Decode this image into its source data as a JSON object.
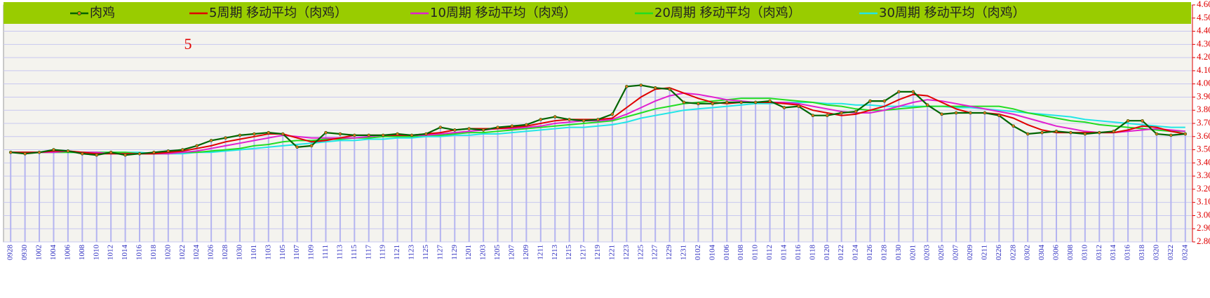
{
  "chart_data": {
    "type": "line",
    "annotation": "5",
    "categories": [
      "0928",
      "0930",
      "1002",
      "1004",
      "1006",
      "1008",
      "1010",
      "1012",
      "1014",
      "1016",
      "1018",
      "1020",
      "1022",
      "1024",
      "1026",
      "1028",
      "1030",
      "1101",
      "1103",
      "1105",
      "1107",
      "1109",
      "1111",
      "1113",
      "1115",
      "1117",
      "1119",
      "1121",
      "1123",
      "1125",
      "1127",
      "1129",
      "1201",
      "1203",
      "1205",
      "1207",
      "1209",
      "1211",
      "1213",
      "1215",
      "1217",
      "1219",
      "1221",
      "1223",
      "1225",
      "1227",
      "1229",
      "1231",
      "0102",
      "0104",
      "0106",
      "0108",
      "0110",
      "0112",
      "0114",
      "0116",
      "0118",
      "0120",
      "0122",
      "0124",
      "0126",
      "0128",
      "0130",
      "0201",
      "0203",
      "0205",
      "0207",
      "0209",
      "0211",
      "0226",
      "0228",
      "0302",
      "0304",
      "0306",
      "0308",
      "0310",
      "0312",
      "0314",
      "0316",
      "0318",
      "0320",
      "0322",
      "0324"
    ],
    "series": [
      {
        "name": "肉鸡",
        "color": "#006400",
        "values": [
          3.48,
          3.47,
          3.48,
          3.5,
          3.49,
          3.47,
          3.46,
          3.48,
          3.46,
          3.47,
          3.48,
          3.49,
          3.5,
          3.53,
          3.57,
          3.59,
          3.61,
          3.62,
          3.63,
          3.62,
          3.52,
          3.53,
          3.63,
          3.62,
          3.61,
          3.61,
          3.61,
          3.62,
          3.61,
          3.62,
          3.67,
          3.65,
          3.66,
          3.65,
          3.67,
          3.68,
          3.69,
          3.73,
          3.75,
          3.73,
          3.72,
          3.73,
          3.77,
          3.98,
          3.99,
          3.97,
          3.96,
          3.86,
          3.85,
          3.85,
          3.86,
          3.86,
          3.86,
          3.87,
          3.82,
          3.83,
          3.76,
          3.76,
          3.78,
          3.79,
          3.87,
          3.87,
          3.94,
          3.94,
          3.84,
          3.77,
          3.78,
          3.78,
          3.78,
          3.76,
          3.68,
          3.62,
          3.63,
          3.64,
          3.63,
          3.62,
          3.63,
          3.64,
          3.72,
          3.72,
          3.62,
          3.61,
          3.62
        ]
      },
      {
        "name": "5周期 移动平均（肉鸡）",
        "color": "#e00000",
        "values": [
          3.48,
          3.48,
          3.48,
          3.49,
          3.49,
          3.48,
          3.47,
          3.47,
          3.47,
          3.47,
          3.47,
          3.48,
          3.49,
          3.51,
          3.53,
          3.56,
          3.58,
          3.6,
          3.62,
          3.62,
          3.59,
          3.56,
          3.57,
          3.59,
          3.61,
          3.61,
          3.61,
          3.61,
          3.61,
          3.62,
          3.63,
          3.65,
          3.66,
          3.66,
          3.66,
          3.67,
          3.68,
          3.7,
          3.72,
          3.73,
          3.73,
          3.73,
          3.74,
          3.82,
          3.9,
          3.96,
          3.97,
          3.93,
          3.89,
          3.86,
          3.85,
          3.86,
          3.86,
          3.86,
          3.85,
          3.84,
          3.8,
          3.78,
          3.76,
          3.77,
          3.8,
          3.83,
          3.88,
          3.92,
          3.91,
          3.86,
          3.81,
          3.78,
          3.78,
          3.77,
          3.74,
          3.69,
          3.65,
          3.63,
          3.63,
          3.63,
          3.63,
          3.63,
          3.65,
          3.68,
          3.67,
          3.64,
          3.62
        ]
      },
      {
        "name": "10周期 移动平均（肉鸡）",
        "color": "#e020d0",
        "values": [
          3.48,
          3.48,
          3.48,
          3.48,
          3.49,
          3.48,
          3.48,
          3.47,
          3.47,
          3.47,
          3.47,
          3.47,
          3.48,
          3.49,
          3.51,
          3.53,
          3.55,
          3.57,
          3.59,
          3.61,
          3.6,
          3.59,
          3.59,
          3.59,
          3.59,
          3.6,
          3.61,
          3.61,
          3.61,
          3.61,
          3.62,
          3.63,
          3.64,
          3.65,
          3.66,
          3.66,
          3.67,
          3.68,
          3.7,
          3.71,
          3.72,
          3.72,
          3.73,
          3.77,
          3.82,
          3.87,
          3.91,
          3.93,
          3.92,
          3.9,
          3.88,
          3.87,
          3.86,
          3.86,
          3.86,
          3.85,
          3.83,
          3.81,
          3.79,
          3.78,
          3.78,
          3.8,
          3.83,
          3.86,
          3.88,
          3.87,
          3.85,
          3.83,
          3.81,
          3.79,
          3.77,
          3.74,
          3.71,
          3.68,
          3.66,
          3.64,
          3.63,
          3.63,
          3.64,
          3.65,
          3.66,
          3.65,
          3.64
        ]
      },
      {
        "name": "20周期 移动平均（肉鸡）",
        "color": "#22dd22",
        "values": [
          3.48,
          3.48,
          3.48,
          3.48,
          3.48,
          3.48,
          3.48,
          3.48,
          3.48,
          3.47,
          3.47,
          3.47,
          3.48,
          3.48,
          3.49,
          3.5,
          3.51,
          3.53,
          3.54,
          3.56,
          3.57,
          3.57,
          3.58,
          3.58,
          3.59,
          3.59,
          3.6,
          3.6,
          3.6,
          3.61,
          3.61,
          3.62,
          3.63,
          3.63,
          3.64,
          3.65,
          3.66,
          3.67,
          3.68,
          3.69,
          3.7,
          3.71,
          3.72,
          3.75,
          3.78,
          3.81,
          3.83,
          3.85,
          3.86,
          3.87,
          3.88,
          3.89,
          3.89,
          3.89,
          3.88,
          3.87,
          3.86,
          3.84,
          3.83,
          3.81,
          3.8,
          3.8,
          3.81,
          3.82,
          3.83,
          3.83,
          3.83,
          3.83,
          3.83,
          3.83,
          3.81,
          3.78,
          3.76,
          3.74,
          3.72,
          3.71,
          3.69,
          3.68,
          3.67,
          3.66,
          3.65,
          3.64,
          3.64
        ]
      },
      {
        "name": "30周期 移动平均（肉鸡）",
        "color": "#22e6e6",
        "values": [
          3.48,
          3.48,
          3.48,
          3.48,
          3.48,
          3.48,
          3.48,
          3.48,
          3.48,
          3.48,
          3.47,
          3.47,
          3.47,
          3.48,
          3.48,
          3.49,
          3.5,
          3.51,
          3.52,
          3.53,
          3.54,
          3.55,
          3.56,
          3.57,
          3.57,
          3.58,
          3.58,
          3.59,
          3.59,
          3.6,
          3.6,
          3.61,
          3.61,
          3.62,
          3.62,
          3.63,
          3.64,
          3.65,
          3.66,
          3.67,
          3.67,
          3.68,
          3.69,
          3.71,
          3.74,
          3.76,
          3.78,
          3.8,
          3.81,
          3.82,
          3.83,
          3.84,
          3.85,
          3.85,
          3.86,
          3.86,
          3.86,
          3.85,
          3.85,
          3.84,
          3.84,
          3.83,
          3.83,
          3.83,
          3.83,
          3.83,
          3.82,
          3.82,
          3.81,
          3.8,
          3.79,
          3.78,
          3.77,
          3.76,
          3.75,
          3.73,
          3.72,
          3.71,
          3.7,
          3.69,
          3.68,
          3.67,
          3.67
        ]
      }
    ],
    "ylim": [
      2.8,
      4.6
    ],
    "yticks": [
      {
        "value": 2.8,
        "label": "2.80"
      },
      {
        "value": 2.9,
        "label": "2.90"
      },
      {
        "value": 3.0,
        "label": "3.00"
      },
      {
        "value": 3.1,
        "label": "3.10"
      },
      {
        "value": 3.2,
        "label": "3.20"
      },
      {
        "value": 3.3,
        "label": "3.30"
      },
      {
        "value": 3.4,
        "label": "3.40"
      },
      {
        "value": 3.5,
        "label": "3.50"
      },
      {
        "value": 3.6,
        "label": "3.60"
      },
      {
        "value": 3.7,
        "label": "3.70"
      },
      {
        "value": 3.8,
        "label": "3.80"
      },
      {
        "value": 3.9,
        "label": "3.90"
      },
      {
        "value": 4.0,
        "label": "4.00"
      },
      {
        "value": 4.1,
        "label": "4.10"
      },
      {
        "value": 4.2,
        "label": "4.20"
      },
      {
        "value": 4.3,
        "label": "4.30"
      },
      {
        "value": 4.4,
        "label": "4.40"
      },
      {
        "value": 4.5,
        "label": "4.50"
      },
      {
        "value": 4.6,
        "label": "4.60"
      }
    ],
    "grid": true
  }
}
